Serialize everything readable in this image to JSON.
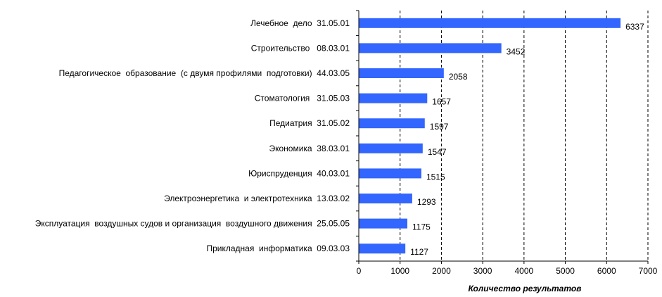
{
  "chart_data": {
    "type": "bar",
    "orientation": "horizontal",
    "categories": [
      "Лечебное  дело  31.05.01",
      "Строительство   08.03.01",
      "Педагогическое  образование  (с двумя профилями  подготовки)  44.03.05",
      "Стоматология   31.05.03",
      "Педиатрия  31.05.02",
      "Экономика  38.03.01",
      "Юриспруденция  40.03.01",
      "Электроэнергетика  и электротехника  13.03.02",
      "Эксплуатация  воздушных судов и организация  воздушного движения  25.05.05",
      "Прикладная  информатика  09.03.03"
    ],
    "values": [
      6337,
      3452,
      2058,
      1657,
      1597,
      1547,
      1515,
      1293,
      1175,
      1127
    ],
    "value_labels": [
      "6337",
      "3452",
      "2058",
      "1657",
      "1597",
      "1547",
      "1515",
      "1293",
      "1175",
      "1127"
    ],
    "xlabel": "Количество  результатов",
    "xlim": [
      0,
      7000
    ],
    "xticks": [
      "0",
      "1000",
      "2000",
      "3000",
      "4000",
      "5000",
      "6000",
      "7000"
    ],
    "grid": "vertical-dashed",
    "bar_color": "#3366ff"
  }
}
